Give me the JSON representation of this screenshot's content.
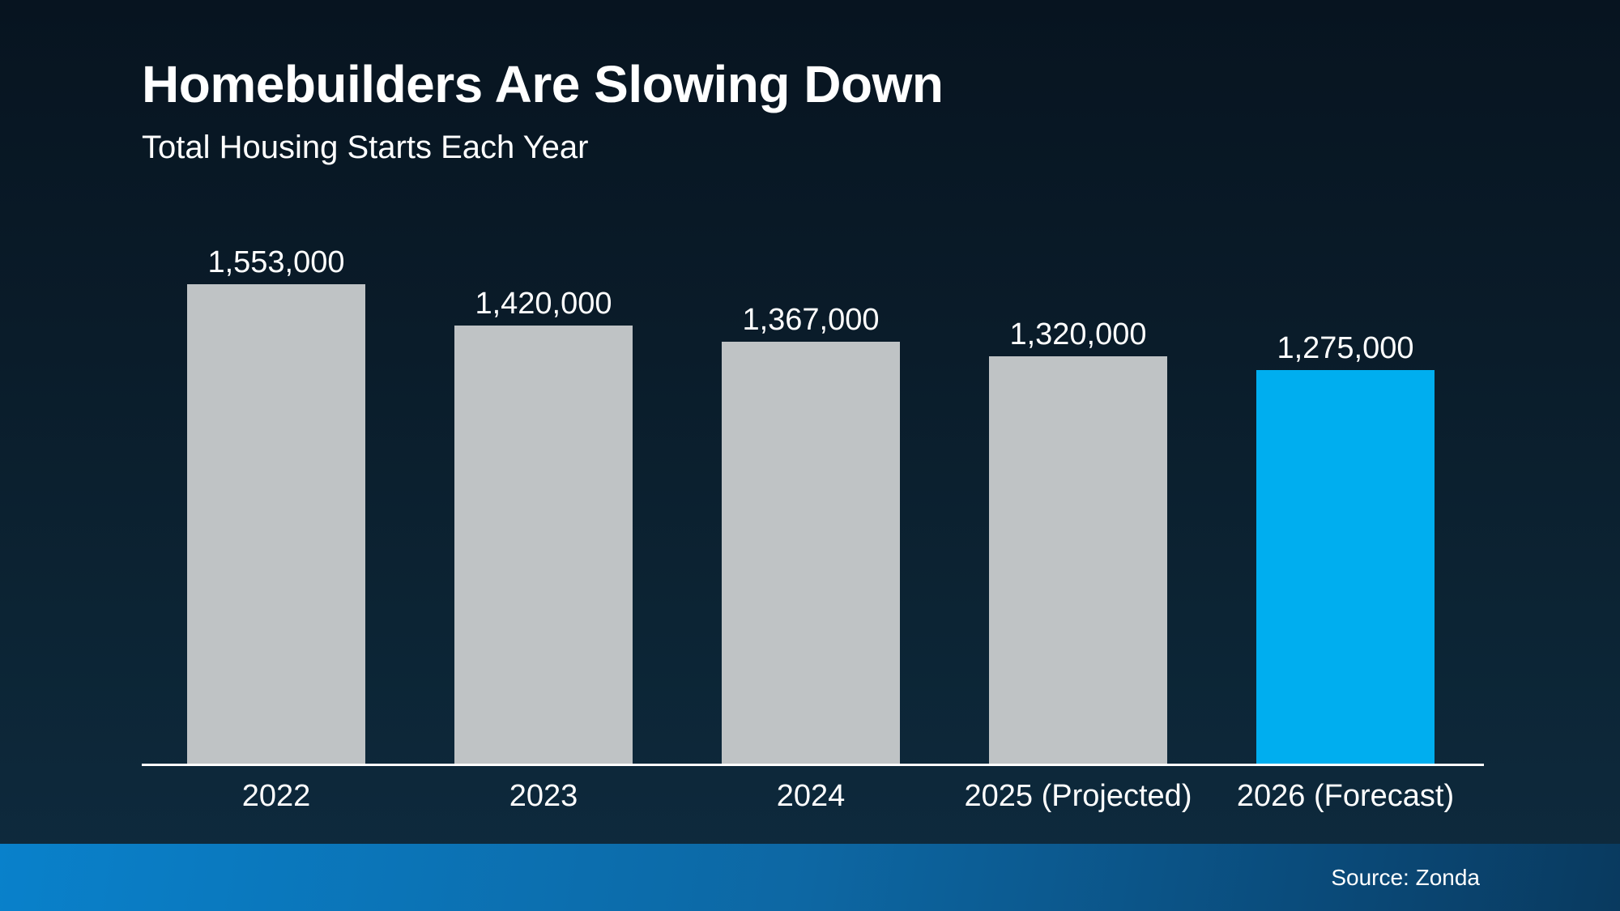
{
  "page": {
    "title": "Homebuilders Are Slowing Down",
    "subtitle": "Total Housing Starts Each Year",
    "source": "Source: Zonda"
  },
  "colors": {
    "background_top": "#071420",
    "background_bottom": "#0e2b3f",
    "bar_default": "#bfc3c5",
    "bar_highlight": "#00aeef",
    "axis_line": "#ffffff",
    "footer_gradient_left": "#0981cb",
    "footer_gradient_right": "#093a5f",
    "text": "#ffffff"
  },
  "chart_data": {
    "type": "bar",
    "title": "Homebuilders Are Slowing Down",
    "subtitle": "Total Housing Starts Each Year",
    "categories": [
      "2022",
      "2023",
      "2024",
      "2025 (Projected)",
      "2026 (Forecast)"
    ],
    "values": [
      1553000,
      1420000,
      1367000,
      1320000,
      1275000
    ],
    "value_labels": [
      "1,553,000",
      "1,420,000",
      "1,367,000",
      "1,320,000",
      "1,275,000"
    ],
    "highlight_index": 4,
    "ylim": [
      0,
      1553000
    ],
    "grid": false,
    "legend": false,
    "xlabel": "",
    "ylabel": "",
    "source": "Source: Zonda"
  }
}
